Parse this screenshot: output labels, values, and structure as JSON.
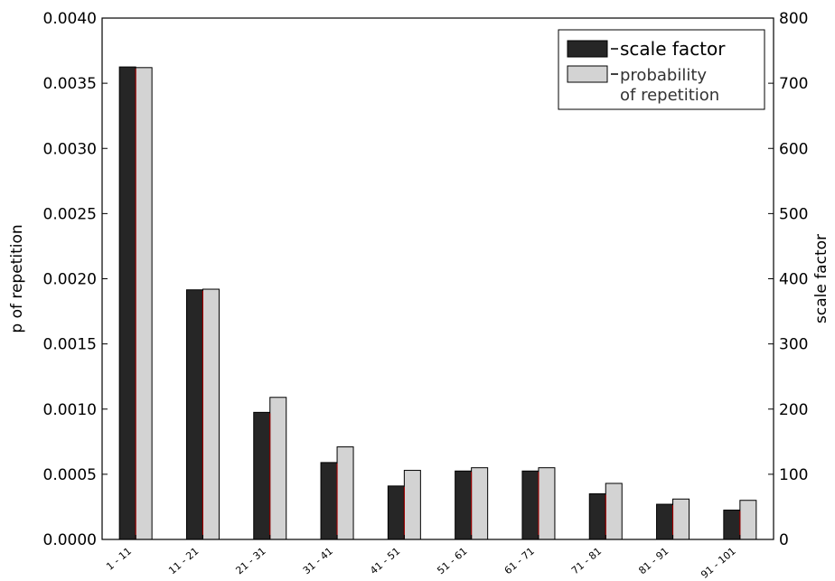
{
  "chart_data": {
    "type": "bar",
    "categories": [
      "1 - 11",
      "11 - 21",
      "21 - 31",
      "31 - 41",
      "41 - 51",
      "51 - 61",
      "61 - 71",
      "71 - 81",
      "81 - 91",
      "91 - 101"
    ],
    "series": [
      {
        "name": "scale factor",
        "axis": "right",
        "color": "#262626",
        "values": [
          725,
          383,
          195,
          118,
          82,
          105,
          105,
          70,
          54,
          45
        ]
      },
      {
        "name": "probability of repetition",
        "axis": "left",
        "color": "#d3d3d3",
        "values": [
          0.00362,
          0.00192,
          0.00109,
          0.00071,
          0.00053,
          0.00055,
          0.00055,
          0.00043,
          0.00031,
          0.0003
        ]
      }
    ],
    "left_axis": {
      "label": "p of repetition",
      "ylim": [
        0,
        0.004
      ],
      "ticks": [
        "0.0000",
        "0.0005",
        "0.0010",
        "0.0015",
        "0.0020",
        "0.0025",
        "0.0030",
        "0.0035",
        "0.0040"
      ]
    },
    "right_axis": {
      "label": "scale factor",
      "ylim": [
        0,
        800
      ],
      "ticks": [
        "0",
        "100",
        "200",
        "300",
        "400",
        "500",
        "600",
        "700",
        "800"
      ]
    },
    "legend": {
      "placement": "top-right",
      "entries": [
        {
          "lines": [
            "scale factor"
          ]
        },
        {
          "lines": [
            "probability",
            "of repetition"
          ]
        }
      ]
    },
    "grid": false
  }
}
